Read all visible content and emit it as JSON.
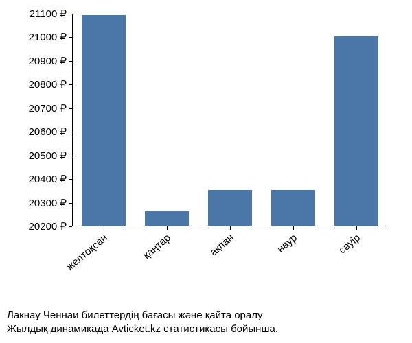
{
  "chart": {
    "type": "bar",
    "categories": [
      "желтоқсан",
      "қаңтар",
      "ақпан",
      "наур",
      "сәуір"
    ],
    "values": [
      21095,
      20265,
      20355,
      20355,
      21005
    ],
    "bar_color": "#4a76a8",
    "ylim": [
      20200,
      21100
    ],
    "ytick_step": 100,
    "ytick_suffix": " ₽",
    "axis_color": "#000000",
    "label_fontsize": 15,
    "label_color": "#000000",
    "bar_width_ratio": 0.7,
    "background_color": "#ffffff",
    "x_label_rotation": -40
  },
  "caption": {
    "line1": "Лакнау Ченнаи билеттердің бағасы және қайта оралу",
    "line2": "Жылдық динамикада Avticket.kz статистикасы бойынша."
  }
}
